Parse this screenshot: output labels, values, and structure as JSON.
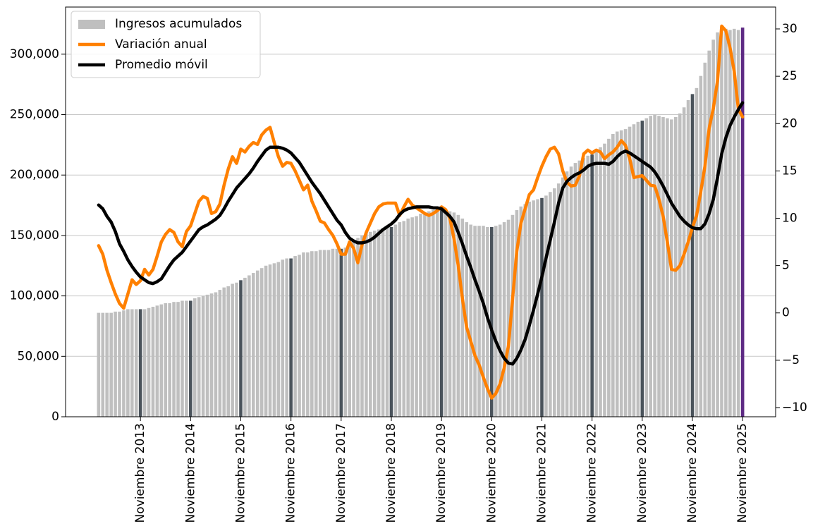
{
  "chart_data": {
    "type": "bar",
    "categories": [
      null,
      null,
      null,
      null,
      null,
      null,
      null,
      null,
      null,
      null,
      "Noviembre 2013",
      null,
      null,
      null,
      null,
      null,
      null,
      null,
      null,
      null,
      null,
      null,
      "Noviembre 2014",
      null,
      null,
      null,
      null,
      null,
      null,
      null,
      null,
      null,
      null,
      null,
      "Noviembre 2015",
      null,
      null,
      null,
      null,
      null,
      null,
      null,
      null,
      null,
      null,
      null,
      "Noviembre 2016",
      null,
      null,
      null,
      null,
      null,
      null,
      null,
      null,
      null,
      null,
      null,
      "Noviembre 2017",
      null,
      null,
      null,
      null,
      null,
      null,
      null,
      null,
      null,
      null,
      null,
      "Noviembre 2018",
      null,
      null,
      null,
      null,
      null,
      null,
      null,
      null,
      null,
      null,
      null,
      "Noviembre 2019",
      null,
      null,
      null,
      null,
      null,
      null,
      null,
      null,
      null,
      null,
      null,
      "Noviembre 2020",
      null,
      null,
      null,
      null,
      null,
      null,
      null,
      null,
      null,
      null,
      null,
      "Noviembre 2021",
      null,
      null,
      null,
      null,
      null,
      null,
      null,
      null,
      null,
      null,
      null,
      "Noviembre 2022",
      null,
      null,
      null,
      null,
      null,
      null,
      null,
      null,
      null,
      null,
      null,
      "Noviembre 2023",
      null,
      null,
      null,
      null,
      null,
      null,
      null,
      null,
      null,
      null,
      null,
      "Noviembre 2024",
      null,
      null,
      null,
      null,
      null,
      null,
      null,
      null,
      null,
      null,
      null,
      "Noviembre 2025"
    ],
    "series": [
      {
        "name": "Ingresos acumulados",
        "type": "bar",
        "color": "#bfbfbf",
        "highlight_color": "#4a535b",
        "latest_color": "#5e2a84",
        "values": [
          86000,
          86000,
          86000,
          86000,
          87000,
          87000,
          88000,
          89000,
          89000,
          89000,
          89000,
          89000,
          90000,
          91000,
          92000,
          93000,
          94000,
          94000,
          95000,
          95000,
          96000,
          96000,
          96000,
          98000,
          99000,
          100000,
          101000,
          102000,
          103000,
          105000,
          107000,
          108000,
          110000,
          111000,
          113000,
          115000,
          117000,
          119000,
          121000,
          123000,
          125000,
          126000,
          127000,
          128000,
          130000,
          131000,
          131000,
          133000,
          134000,
          136000,
          136000,
          137000,
          137000,
          138000,
          138000,
          138000,
          139000,
          139000,
          139000,
          140000,
          142000,
          145000,
          148000,
          150000,
          152000,
          153000,
          154000,
          155000,
          156000,
          157000,
          157000,
          159000,
          161000,
          162000,
          164000,
          165000,
          166000,
          168000,
          169000,
          170000,
          171000,
          172000,
          172000,
          171000,
          170000,
          169000,
          167000,
          164000,
          161000,
          159000,
          158000,
          158000,
          158000,
          157000,
          157000,
          158000,
          159000,
          161000,
          163000,
          167000,
          171000,
          174000,
          176000,
          178000,
          179000,
          180000,
          181000,
          183000,
          186000,
          189000,
          193000,
          198000,
          203000,
          207000,
          210000,
          212000,
          214000,
          216000,
          217000,
          220000,
          223000,
          226000,
          230000,
          234000,
          236000,
          237000,
          238000,
          240000,
          242000,
          244000,
          245000,
          247000,
          249000,
          250000,
          249000,
          248000,
          247000,
          246000,
          248000,
          251000,
          256000,
          262000,
          267000,
          272000,
          282000,
          293000,
          303000,
          312000,
          318000,
          320000,
          321000,
          320000,
          321000,
          320000,
          322000
        ]
      },
      {
        "name": "Variación anual",
        "type": "line",
        "axis": "y2",
        "color": "#ff8000",
        "values": [
          7.1,
          6.2,
          4.5,
          3.2,
          2.0,
          1.0,
          0.5,
          2.0,
          3.5,
          3.0,
          3.4,
          4.6,
          4.0,
          4.6,
          6.0,
          7.5,
          8.3,
          8.8,
          8.5,
          7.5,
          7.0,
          8.6,
          9.2,
          10.5,
          11.8,
          12.3,
          12.1,
          10.5,
          10.7,
          11.5,
          13.5,
          15.2,
          16.5,
          15.8,
          17.3,
          17.0,
          17.6,
          18.0,
          17.8,
          18.8,
          19.3,
          19.6,
          18.0,
          16.5,
          15.5,
          15.9,
          15.8,
          15.0,
          14.0,
          13.0,
          13.5,
          11.8,
          10.8,
          9.7,
          9.5,
          8.8,
          8.2,
          7.3,
          6.2,
          6.2,
          7.5,
          6.8,
          5.3,
          7.2,
          8.5,
          9.5,
          10.5,
          11.2,
          11.5,
          11.6,
          11.6,
          11.6,
          10.3,
          11.2,
          12.0,
          11.4,
          11.1,
          10.8,
          10.5,
          10.3,
          10.5,
          10.8,
          11.2,
          10.9,
          10.0,
          7.8,
          5.0,
          1.5,
          -1.5,
          -3.0,
          -4.5,
          -5.5,
          -6.8,
          -8.0,
          -9.0,
          -8.5,
          -7.5,
          -5.8,
          -3.5,
          1.5,
          6.5,
          9.5,
          11.0,
          12.5,
          13.0,
          14.3,
          15.5,
          16.5,
          17.3,
          17.5,
          16.8,
          15.0,
          13.8,
          13.4,
          13.5,
          14.5,
          16.8,
          17.2,
          16.9,
          17.2,
          17.0,
          16.3,
          16.7,
          17.0,
          17.5,
          18.2,
          17.7,
          16.3,
          14.3,
          14.4,
          14.5,
          14.0,
          13.5,
          13.4,
          12.0,
          10.2,
          7.5,
          4.6,
          4.5,
          5.0,
          6.2,
          7.5,
          9.0,
          10.3,
          12.8,
          15.5,
          19.5,
          21.6,
          24.5,
          30.3,
          29.8,
          28.0,
          25.5,
          21.5,
          20.7
        ]
      },
      {
        "name": "Promedio móvil",
        "type": "line",
        "axis": "y2",
        "color": "#000000",
        "values": [
          11.4,
          11.0,
          10.2,
          9.6,
          8.6,
          7.3,
          6.5,
          5.6,
          4.9,
          4.3,
          3.8,
          3.5,
          3.2,
          3.1,
          3.3,
          3.6,
          4.3,
          5.0,
          5.6,
          6.0,
          6.4,
          7.0,
          7.6,
          8.2,
          8.8,
          9.1,
          9.3,
          9.6,
          9.9,
          10.3,
          11.0,
          11.8,
          12.5,
          13.2,
          13.7,
          14.2,
          14.7,
          15.3,
          16.0,
          16.6,
          17.2,
          17.5,
          17.5,
          17.5,
          17.4,
          17.2,
          16.9,
          16.4,
          15.9,
          15.2,
          14.5,
          13.8,
          13.2,
          12.6,
          11.9,
          11.2,
          10.5,
          9.8,
          9.3,
          8.5,
          7.9,
          7.6,
          7.4,
          7.4,
          7.5,
          7.7,
          8.0,
          8.4,
          8.8,
          9.1,
          9.4,
          9.8,
          10.4,
          10.8,
          11.0,
          11.1,
          11.2,
          11.2,
          11.2,
          11.2,
          11.1,
          11.1,
          11.0,
          10.6,
          10.2,
          9.6,
          8.5,
          7.3,
          6.0,
          4.8,
          3.5,
          2.3,
          1.0,
          -0.5,
          -1.8,
          -3.0,
          -4.0,
          -4.8,
          -5.3,
          -5.4,
          -4.8,
          -3.9,
          -2.8,
          -1.3,
          0.3,
          2.0,
          3.8,
          5.8,
          7.7,
          9.6,
          11.6,
          13.2,
          13.9,
          14.3,
          14.6,
          14.8,
          15.1,
          15.5,
          15.7,
          15.8,
          15.8,
          15.8,
          15.7,
          16.0,
          16.5,
          16.9,
          17.1,
          16.9,
          16.6,
          16.3,
          16.0,
          15.7,
          15.4,
          14.9,
          14.2,
          13.4,
          12.5,
          11.6,
          10.9,
          10.2,
          9.7,
          9.3,
          9.0,
          8.9,
          8.9,
          9.4,
          10.5,
          12.0,
          14.3,
          16.8,
          18.5,
          19.8,
          20.7,
          21.5,
          22.2
        ]
      }
    ],
    "ylim": [
      0,
      339000
    ],
    "yticks": [
      0,
      {
        "value": 50000,
        "label": "50,000"
      },
      {
        "value": 100000,
        "label": "100,000"
      },
      {
        "value": 150000,
        "label": "150,000"
      },
      {
        "value": 200000,
        "label": "200,000"
      },
      {
        "value": 250000,
        "label": "250,000"
      },
      {
        "value": 300000,
        "label": "300,000"
      }
    ],
    "y2lim": [
      -10.97,
      32.31
    ],
    "y2ticks": [
      {
        "value": -10,
        "label": "−10"
      },
      {
        "value": -5,
        "label": "−5"
      },
      0,
      5,
      10,
      15,
      20,
      25,
      30
    ],
    "grid": true,
    "legend": "upper-left"
  }
}
